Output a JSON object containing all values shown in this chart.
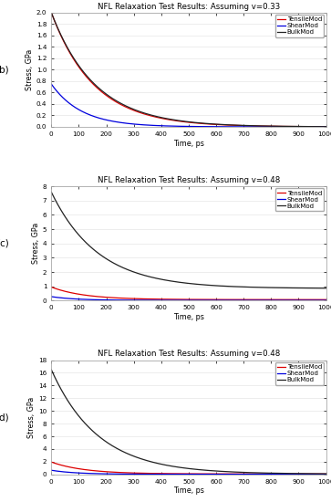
{
  "panels": [
    {
      "label": "(b)",
      "title": "NFL Relaxation Test Results: Assuming v=0.33",
      "ylabel": "Stress, GPa",
      "xlabel": "Time, ps",
      "xlim": [
        0,
        1000
      ],
      "ylim": [
        0,
        2
      ],
      "yticks": [
        0,
        0.2,
        0.4,
        0.6,
        0.8,
        1.0,
        1.2,
        1.4,
        1.6,
        1.8,
        2.0
      ],
      "xticks": [
        0,
        100,
        200,
        300,
        400,
        500,
        600,
        700,
        800,
        900,
        1000
      ],
      "series": [
        {
          "name": "TensileMod",
          "color": "#dd0000",
          "init": 2.0,
          "tau": 155.0,
          "floor": 0.0
        },
        {
          "name": "ShearMod",
          "color": "#0000dd",
          "init": 0.75,
          "tau": 110.0,
          "floor": 0.0
        },
        {
          "name": "BulkMod",
          "color": "#222222",
          "init": 2.0,
          "tau": 160.0,
          "floor": 0.0
        }
      ]
    },
    {
      "label": "(c)",
      "title": "NFL Relaxation Test Results: Assuming v=0.48",
      "ylabel": "Stress, GPa",
      "xlabel": "Time, ps",
      "xlim": [
        0,
        1000
      ],
      "ylim": [
        0,
        8
      ],
      "yticks": [
        0,
        1,
        2,
        3,
        4,
        5,
        6,
        7,
        8
      ],
      "xticks": [
        0,
        100,
        200,
        300,
        400,
        500,
        600,
        700,
        800,
        900,
        1000
      ],
      "series": [
        {
          "name": "TensileMod",
          "color": "#dd0000",
          "init": 0.95,
          "tau": 120.0,
          "floor": 0.07
        },
        {
          "name": "ShearMod",
          "color": "#0000dd",
          "init": 0.28,
          "tau": 90.0,
          "floor": 0.02
        },
        {
          "name": "BulkMod",
          "color": "#222222",
          "init": 7.6,
          "tau": 170.0,
          "floor": 0.85
        }
      ]
    },
    {
      "label": "(d)",
      "title": "NFL Relaxation Test Results: Assuming v=0.48",
      "ylabel": "Stress, GPa",
      "xlabel": "Time, ps",
      "xlim": [
        0,
        1000
      ],
      "ylim": [
        0,
        18
      ],
      "yticks": [
        0,
        2,
        4,
        6,
        8,
        10,
        12,
        14,
        16,
        18
      ],
      "xticks": [
        0,
        100,
        200,
        300,
        400,
        500,
        600,
        700,
        800,
        900,
        1000
      ],
      "series": [
        {
          "name": "TensileMod",
          "color": "#dd0000",
          "init": 1.95,
          "tau": 120.0,
          "floor": 0.07
        },
        {
          "name": "ShearMod",
          "color": "#0000dd",
          "init": 0.65,
          "tau": 90.0,
          "floor": 0.02
        },
        {
          "name": "BulkMod",
          "color": "#222222",
          "init": 16.5,
          "tau": 170.0,
          "floor": 0.05
        }
      ]
    }
  ],
  "bg": "#ffffff",
  "linewidth": 0.9,
  "legend_fontsize": 5.0,
  "title_fontsize": 6.2,
  "tick_fontsize": 5.2,
  "label_fontsize": 5.8,
  "panel_label_fontsize": 7.5
}
